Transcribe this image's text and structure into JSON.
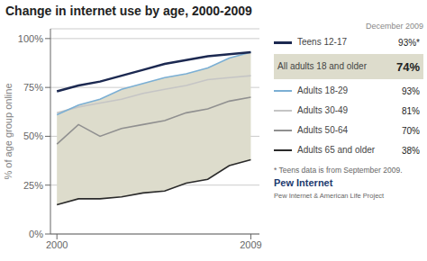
{
  "chart_data": {
    "type": "line",
    "title": "Change in internet use by age, 2000-2009",
    "y_label": "% of age group online",
    "x": [
      2000,
      2001,
      2002,
      2003,
      2004,
      2005,
      2006,
      2007,
      2008,
      2009
    ],
    "xlim": [
      1999.7,
      2009.4
    ],
    "xticks": [
      2000,
      2009
    ],
    "ylim": [
      0,
      105
    ],
    "yticks": [
      {
        "value": 0,
        "label": "0%"
      },
      {
        "value": 25,
        "label": "25%"
      },
      {
        "value": 50,
        "label": "50%"
      },
      {
        "value": 75,
        "label": "75%"
      },
      {
        "value": 100,
        "label": "100%"
      }
    ],
    "grid": true,
    "series": [
      {
        "name": "Teens 12-17",
        "type": "line",
        "color": "#1c2951",
        "values": [
          73,
          76,
          78,
          81,
          84,
          87,
          89,
          91,
          92,
          93
        ]
      },
      {
        "name": "All adults 18 and older",
        "type": "band",
        "color": "#dddccc",
        "lower": [
          15,
          18,
          18,
          19,
          21,
          22,
          26,
          28,
          35,
          38
        ],
        "upper": [
          61,
          66,
          69,
          74,
          77,
          80,
          82,
          85,
          90,
          93
        ]
      },
      {
        "name": "Adults 18-29",
        "type": "line",
        "color": "#7bafd4",
        "values": [
          61,
          66,
          69,
          74,
          77,
          80,
          82,
          85,
          90,
          93
        ]
      },
      {
        "name": "Adults 30-49",
        "type": "line",
        "color": "#c5c5c5",
        "values": [
          62,
          65,
          67,
          69,
          72,
          74,
          76,
          79,
          80,
          81
        ]
      },
      {
        "name": "Adults 50-64",
        "type": "line",
        "color": "#909090",
        "values": [
          46,
          56,
          50,
          54,
          56,
          58,
          62,
          64,
          68,
          70
        ]
      },
      {
        "name": "Adults 65 and older",
        "type": "line",
        "color": "#2a2a2a",
        "values": [
          15,
          18,
          18,
          19,
          21,
          22,
          26,
          28,
          35,
          38
        ]
      }
    ],
    "annotations": [
      {
        "text": "December 2009"
      },
      {
        "text": "93%*",
        "series": "Teens 12-17"
      },
      {
        "text": "74%",
        "series": "All adults 18 and older"
      },
      {
        "text": "93%",
        "series": "Adults 18-29"
      },
      {
        "text": "81%",
        "series": "Adults 30-49"
      },
      {
        "text": "70%",
        "series": "Adults 50-64"
      },
      {
        "text": "38%",
        "series": "Adults 65 and older"
      },
      {
        "text": "* Teens data is from September 2009."
      },
      {
        "text": "Pew Internet"
      },
      {
        "text": "Pew Internet & American Life Project"
      }
    ]
  }
}
